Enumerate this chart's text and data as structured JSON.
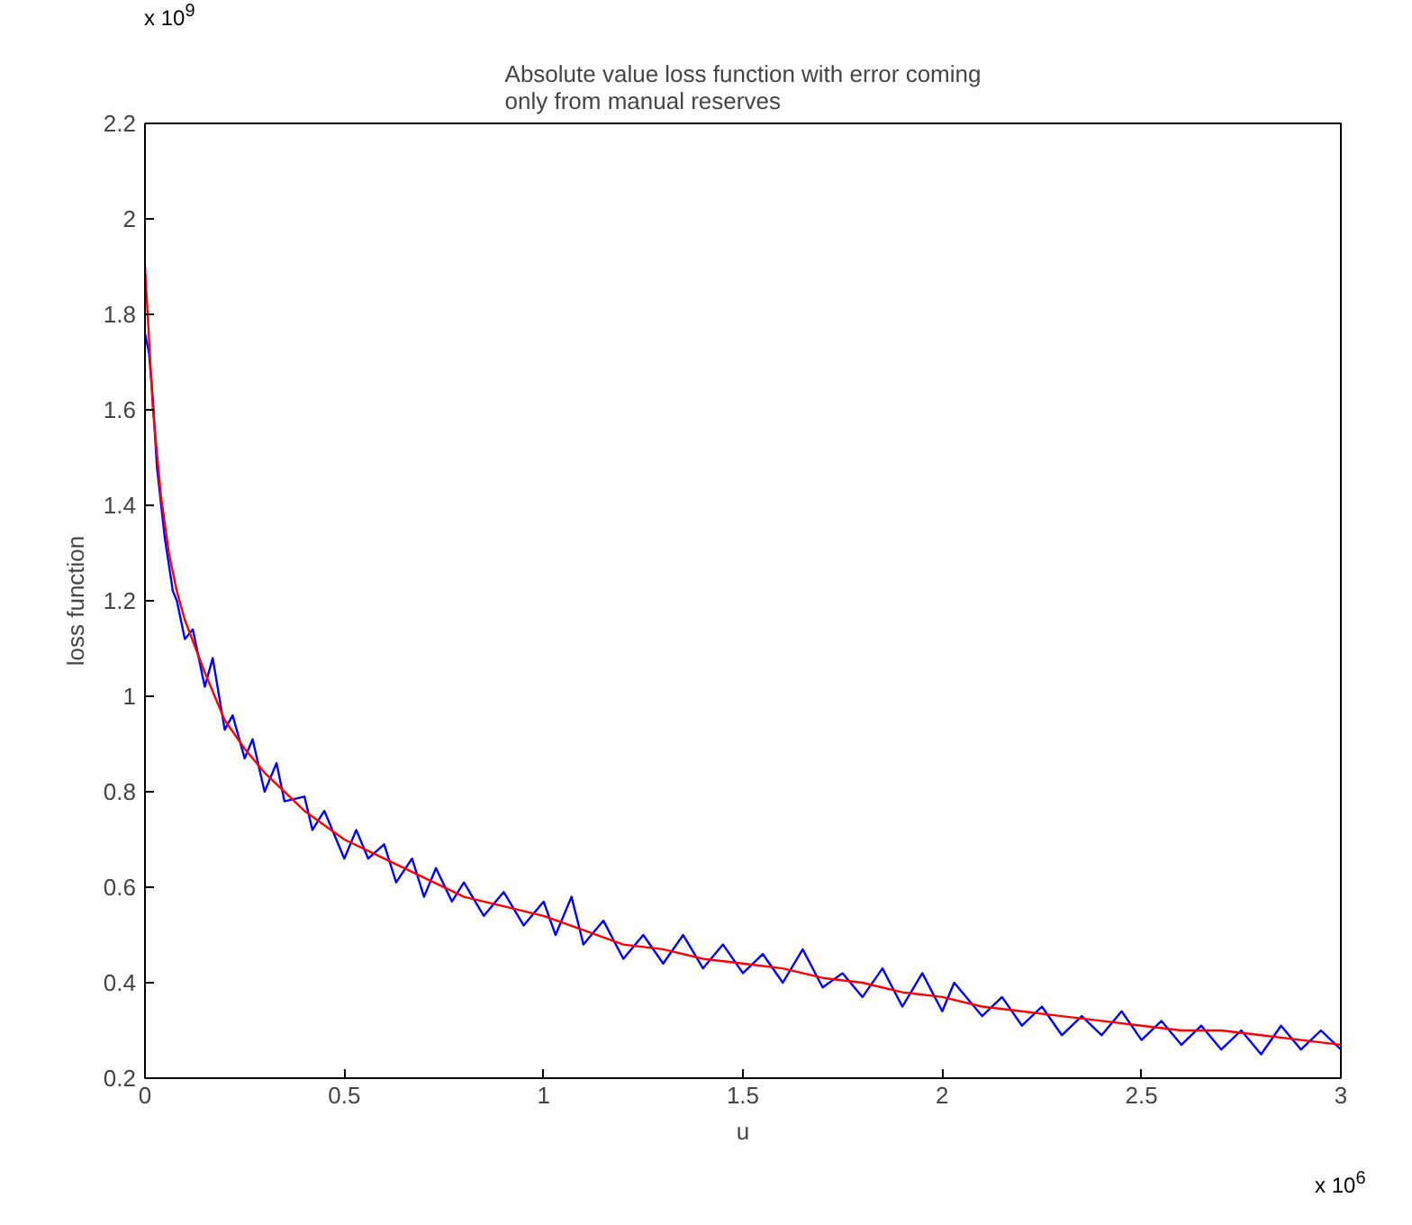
{
  "chart_data": {
    "type": "line",
    "title": "Absolute value loss function with error coming only from manual reserves",
    "xlabel": "u",
    "ylabel": "loss function",
    "xlim": [
      0,
      3
    ],
    "xticks": [
      0,
      0.5,
      1,
      1.5,
      2,
      2.5,
      3
    ],
    "ylim": [
      0.2,
      2.2
    ],
    "yticks": [
      0.2,
      0.4,
      0.6,
      0.8,
      1,
      1.2,
      1.4,
      1.6,
      1.8,
      2,
      2.2
    ],
    "grid": false,
    "line_style": "solid",
    "annotations": [
      "x 10$^{9}$",
      "x 10$^{6}$"
    ],
    "series": [
      {
        "color": "#0000ff",
        "x": [
          0,
          0.01,
          0.02,
          0.03,
          0.05,
          0.07,
          0.08,
          0.1,
          0.12,
          0.15,
          0.17,
          0.2,
          0.22,
          0.25,
          0.27,
          0.3,
          0.33,
          0.35,
          0.4,
          0.42,
          0.45,
          0.5,
          0.53,
          0.56,
          0.6,
          0.63,
          0.67,
          0.7,
          0.73,
          0.77,
          0.8,
          0.85,
          0.9,
          0.95,
          1.0,
          1.03,
          1.07,
          1.1,
          1.15,
          1.2,
          1.25,
          1.3,
          1.35,
          1.4,
          1.45,
          1.5,
          1.55,
          1.6,
          1.65,
          1.7,
          1.75,
          1.8,
          1.85,
          1.9,
          1.95,
          2.0,
          2.03,
          2.1,
          2.15,
          2.2,
          2.25,
          2.3,
          2.35,
          2.4,
          2.45,
          2.5,
          2.55,
          2.6,
          2.65,
          2.7,
          2.75,
          2.8,
          2.85,
          2.9,
          2.95,
          3.0
        ],
        "values": [
          1.76,
          1.72,
          1.62,
          1.48,
          1.33,
          1.22,
          1.2,
          1.12,
          1.14,
          1.02,
          1.08,
          0.93,
          0.96,
          0.87,
          0.91,
          0.8,
          0.86,
          0.78,
          0.79,
          0.72,
          0.76,
          0.66,
          0.72,
          0.66,
          0.69,
          0.61,
          0.66,
          0.58,
          0.64,
          0.57,
          0.61,
          0.54,
          0.59,
          0.52,
          0.57,
          0.5,
          0.58,
          0.48,
          0.53,
          0.45,
          0.5,
          0.44,
          0.5,
          0.43,
          0.48,
          0.42,
          0.46,
          0.4,
          0.47,
          0.39,
          0.42,
          0.37,
          0.43,
          0.35,
          0.42,
          0.34,
          0.4,
          0.33,
          0.37,
          0.31,
          0.35,
          0.29,
          0.33,
          0.29,
          0.34,
          0.28,
          0.32,
          0.27,
          0.31,
          0.26,
          0.3,
          0.25,
          0.31,
          0.26,
          0.3,
          0.26
        ]
      },
      {
        "color": "#ff0000",
        "x": [
          0,
          0.01,
          0.02,
          0.04,
          0.06,
          0.08,
          0.1,
          0.15,
          0.2,
          0.25,
          0.3,
          0.4,
          0.5,
          0.6,
          0.7,
          0.8,
          0.9,
          1.0,
          1.1,
          1.2,
          1.3,
          1.4,
          1.5,
          1.6,
          1.7,
          1.8,
          1.9,
          2.0,
          2.1,
          2.2,
          2.3,
          2.4,
          2.5,
          2.6,
          2.7,
          2.8,
          2.9,
          3.0
        ],
        "values": [
          1.9,
          1.75,
          1.6,
          1.42,
          1.3,
          1.22,
          1.16,
          1.05,
          0.95,
          0.89,
          0.84,
          0.76,
          0.7,
          0.66,
          0.62,
          0.58,
          0.56,
          0.54,
          0.51,
          0.48,
          0.47,
          0.45,
          0.44,
          0.43,
          0.41,
          0.4,
          0.38,
          0.37,
          0.35,
          0.34,
          0.33,
          0.32,
          0.31,
          0.3,
          0.3,
          0.29,
          0.28,
          0.27
        ]
      }
    ]
  }
}
